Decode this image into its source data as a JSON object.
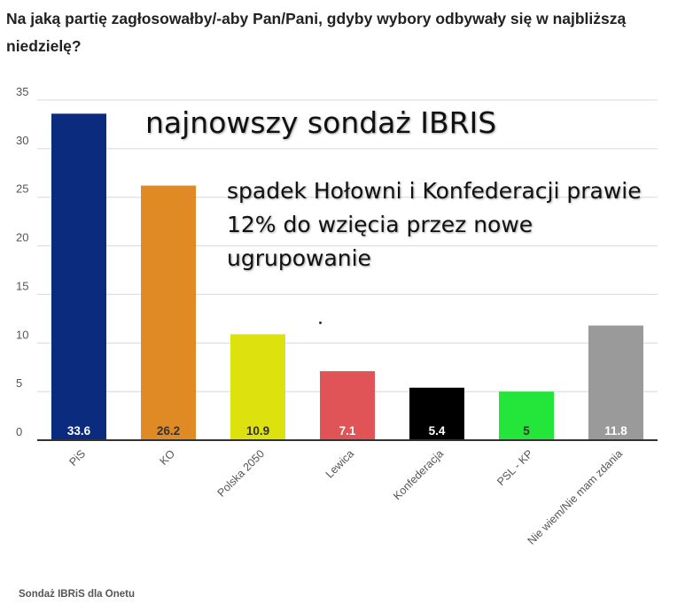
{
  "title": "Na jaką partię zagłosowałby/-aby Pan/Pani, gdyby wybory odbywały się w najbliższą niedzielę?",
  "annotation_main": "najnowszy sondaż IBRIS",
  "annotation_sub": "spadek Hołowni i Konfederacji prawie 12% do wzięcia przez nowe ugrupowanie",
  "source": "Sondaż IBRiS dla Onetu",
  "chart_data": {
    "type": "bar",
    "title": "Na jaką partię zagłosowałby/-aby Pan/Pani, gdyby wybory odbywały się w najbliższą niedzielę?",
    "categories": [
      "PiS",
      "KO",
      "Polska 2050",
      "Lewica",
      "Konfederacja",
      "PSL - KP",
      "Nie wiem/Nie mam zdania"
    ],
    "values": [
      33.6,
      26.2,
      10.9,
      7.1,
      5.4,
      5,
      11.8
    ],
    "value_labels": [
      "33.6",
      "26.2",
      "10.9",
      "7.1",
      "5.4",
      "5",
      "11.8"
    ],
    "colors": [
      "#0a2b7e",
      "#e08a25",
      "#dde20e",
      "#e05458",
      "#000000",
      "#23e53a",
      "#9a9a9a"
    ],
    "label_colors": [
      "#ffffff",
      "#333333",
      "#333333",
      "#ffffff",
      "#ffffff",
      "#333333",
      "#ffffff"
    ],
    "ylim": [
      0,
      35
    ],
    "yticks": [
      0,
      5,
      10,
      15,
      20,
      25,
      30,
      35
    ],
    "ytick_labels": [
      "0",
      "5",
      "10",
      "15",
      "20",
      "25",
      "30",
      "35"
    ],
    "grid": true,
    "legend": "none",
    "xlabel": "",
    "ylabel": ""
  }
}
